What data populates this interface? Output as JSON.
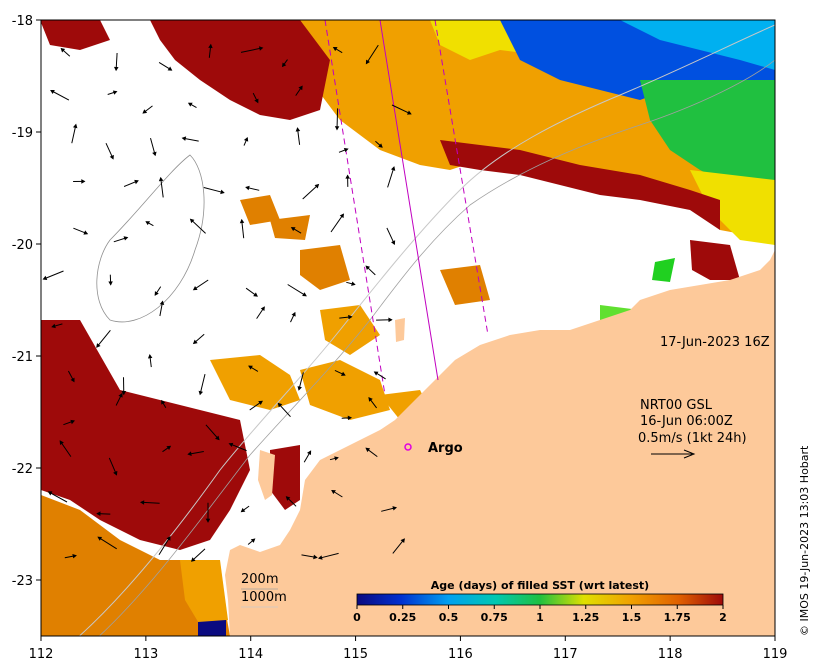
{
  "map": {
    "x_ticks": [
      "112",
      "113",
      "114",
      "115",
      "116",
      "117",
      "118",
      "119"
    ],
    "y_ticks": [
      "-18",
      "-19",
      "-20",
      "-21",
      "-22",
      "-23"
    ],
    "x_range": [
      112,
      119
    ],
    "y_range": [
      -23.5,
      -18
    ]
  },
  "annotations": {
    "date_label": "17-Jun-2023 16Z",
    "current_source": "NRT00 GSL",
    "current_time": "16-Jun 06:00Z",
    "current_scale": "0.5m/s (1kt 24h)",
    "depth_200": "200m",
    "depth_1000": "1000m",
    "argo_label": "Argo"
  },
  "legend": {
    "title": "Age (days) of filled SST (wrt latest)",
    "ticks": [
      "0",
      "0.25",
      "0.5",
      "0.75",
      "1",
      "1.25",
      "1.5",
      "1.75",
      "2"
    ],
    "range": [
      0,
      2
    ]
  },
  "credit": "© IMOS 19-Jun-2023 13:03 Hobart",
  "colors": {
    "land": "#fdc99a",
    "dark_red": "#9e0a0a",
    "orange": "#f0a000",
    "dark_orange": "#e08000",
    "yellow": "#f0e000",
    "blue": "#0050e0",
    "cyan": "#00b0f0",
    "green": "#20c040",
    "argo": "#e000e0",
    "track": "#c000c0"
  }
}
